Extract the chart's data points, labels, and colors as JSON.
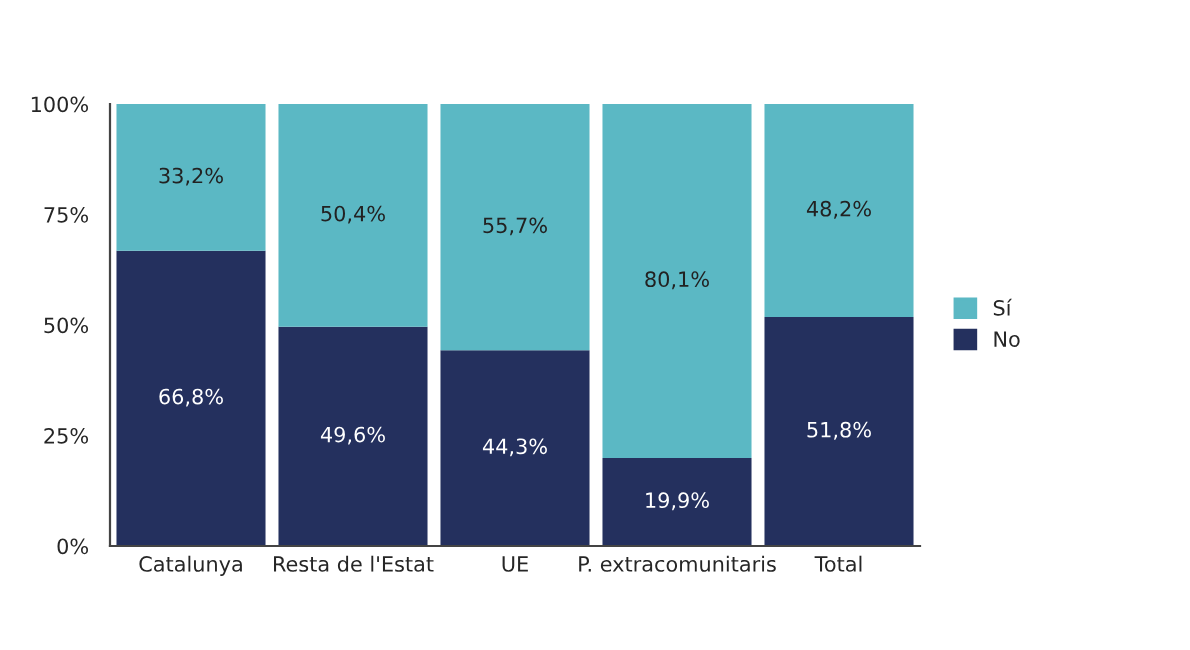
{
  "chart_data": {
    "type": "bar",
    "stacked": true,
    "categories": [
      "Catalunya",
      "Resta de l'Estat",
      "UE",
      "P. extracomunitaris",
      "Total"
    ],
    "series": [
      {
        "name": "No",
        "color": "#24305e",
        "values": [
          66.8,
          49.6,
          44.3,
          19.9,
          51.8
        ],
        "value_labels": [
          "66,8%",
          "49,6%",
          "44,3%",
          "19,9%",
          "51,8%"
        ]
      },
      {
        "name": "Sí",
        "color": "#5bb8c4",
        "values": [
          33.2,
          50.4,
          55.7,
          80.1,
          48.2
        ],
        "value_labels": [
          "33,2%",
          "50,4%",
          "55,7%",
          "80,1%",
          "48,2%"
        ]
      }
    ],
    "ylim": [
      0,
      100
    ],
    "yticks": [
      {
        "value": 0,
        "label": "0%"
      },
      {
        "value": 25,
        "label": "25%"
      },
      {
        "value": 50,
        "label": "50%"
      },
      {
        "value": 75,
        "label": "75%"
      },
      {
        "value": 100,
        "label": "100%"
      }
    ],
    "legend": "right"
  }
}
